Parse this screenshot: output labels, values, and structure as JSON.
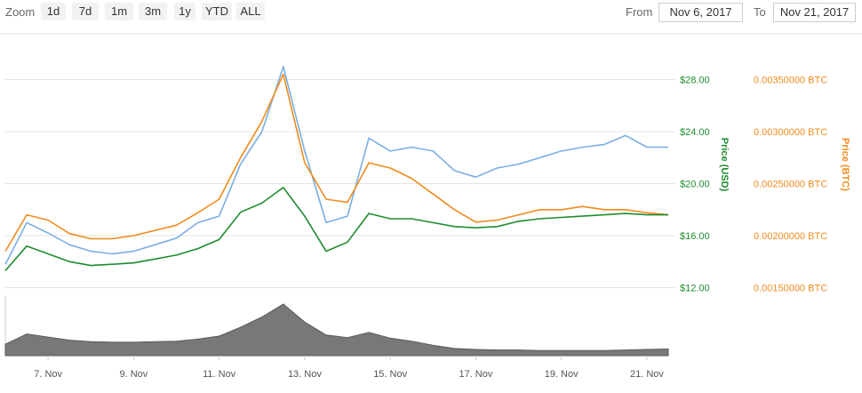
{
  "toolbar": {
    "zoom_label": "Zoom",
    "zoom_buttons": [
      "1d",
      "7d",
      "1m",
      "3m",
      "1y",
      "YTD",
      "ALL"
    ],
    "from_label": "From",
    "from_value": "Nov 6, 2017",
    "to_label": "To",
    "to_value": "Nov 21, 2017"
  },
  "colors": {
    "usd": "#1e8c2e",
    "btc": "#f18a1c",
    "usd_line_light": "#7aaee3",
    "volume": "#787878",
    "grid": "#e6e6e6"
  },
  "chart_data": {
    "type": "line",
    "title": "",
    "xlabel": "",
    "x_tick_labels": [
      "7. Nov",
      "9. Nov",
      "11. Nov",
      "13. Nov",
      "15. Nov",
      "17. Nov",
      "19. Nov",
      "21. Nov"
    ],
    "y_axes": [
      {
        "label": "Price (USD)",
        "ticks": [
          "$12.00",
          "$16.00",
          "$20.00",
          "$24.00",
          "$28.00"
        ],
        "ylim": [
          12,
          30
        ]
      },
      {
        "label": "Price (BTC)",
        "ticks": [
          "0.00150000 BTC",
          "0.00200000 BTC",
          "0.00250000 BTC",
          "0.00300000 BTC",
          "0.00350000 BTC"
        ],
        "ylim": [
          0.0015,
          0.0037
        ]
      }
    ],
    "x": [
      "2017-11-06",
      "2017-11-06T12",
      "2017-11-07",
      "2017-11-07T12",
      "2017-11-08",
      "2017-11-08T12",
      "2017-11-09",
      "2017-11-09T12",
      "2017-11-10",
      "2017-11-10T12",
      "2017-11-11",
      "2017-11-11T12",
      "2017-11-12",
      "2017-11-12T12",
      "2017-11-13",
      "2017-11-13T12",
      "2017-11-14",
      "2017-11-14T12",
      "2017-11-15",
      "2017-11-15T12",
      "2017-11-16",
      "2017-11-16T12",
      "2017-11-17",
      "2017-11-17T12",
      "2017-11-18",
      "2017-11-18T12",
      "2017-11-19",
      "2017-11-19T12",
      "2017-11-20",
      "2017-11-20T12",
      "2017-11-21",
      "2017-11-21T12"
    ],
    "series": [
      {
        "name": "Price (USD)",
        "axis": 0,
        "values": [
          13.8,
          17.0,
          16.2,
          15.3,
          14.8,
          14.6,
          14.8,
          15.3,
          15.8,
          17.0,
          17.5,
          21.5,
          24.0,
          29.0,
          22.5,
          17.0,
          17.5,
          23.5,
          22.5,
          22.8,
          22.5,
          21.0,
          20.5,
          21.2,
          21.5,
          22.0,
          22.5,
          22.8,
          23.0,
          23.7,
          22.8,
          22.8
        ],
        "stroke": "#7aaee3"
      },
      {
        "name": "Price (BTC)",
        "axis": 1,
        "values": [
          0.00185,
          0.0022,
          0.00215,
          0.00202,
          0.00197,
          0.00197,
          0.002,
          0.00205,
          0.0021,
          0.00222,
          0.00235,
          0.00275,
          0.0031,
          0.00355,
          0.0027,
          0.00235,
          0.00232,
          0.0027,
          0.00265,
          0.00255,
          0.0024,
          0.00225,
          0.00213,
          0.00215,
          0.0022,
          0.00225,
          0.00225,
          0.00228,
          0.00225,
          0.00225,
          0.00222,
          0.0022
        ],
        "stroke": "#f18a1c"
      },
      {
        "name": "Price (USD)",
        "axis": 0,
        "values": [
          13.3,
          15.2,
          14.6,
          14.0,
          13.7,
          13.8,
          13.9,
          14.2,
          14.5,
          15.0,
          15.7,
          17.8,
          18.5,
          19.7,
          17.5,
          14.8,
          15.5,
          17.7,
          17.3,
          17.3,
          17.0,
          16.7,
          16.6,
          16.7,
          17.1,
          17.3,
          17.4,
          17.5,
          17.6,
          17.7,
          17.6,
          17.6
        ],
        "stroke": "#1e8c2e"
      }
    ],
    "volume": [
      0.22,
      0.42,
      0.36,
      0.3,
      0.27,
      0.26,
      0.26,
      0.27,
      0.28,
      0.32,
      0.38,
      0.55,
      0.75,
      1.0,
      0.65,
      0.4,
      0.35,
      0.45,
      0.34,
      0.28,
      0.2,
      0.14,
      0.12,
      0.11,
      0.11,
      0.1,
      0.1,
      0.1,
      0.1,
      0.11,
      0.12,
      0.13
    ]
  }
}
